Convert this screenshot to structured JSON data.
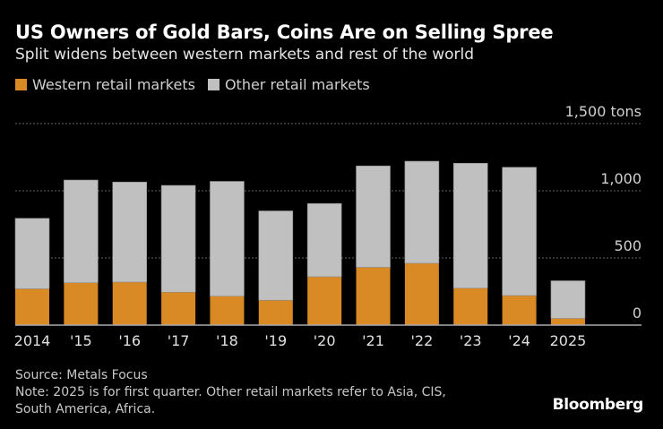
{
  "chart_data": {
    "type": "bar",
    "stacked": true,
    "title": "US Owners of Gold Bars, Coins Are on Selling Spree",
    "subtitle": "Split widens between western markets and rest of the world",
    "categories": [
      "2014",
      "'15",
      "'16",
      "'17",
      "'18",
      "'19",
      "'20",
      "'21",
      "'22",
      "'23",
      "'24",
      "2025"
    ],
    "series": [
      {
        "name": "Western retail markets",
        "color": "#da8a25",
        "values": [
          270,
          315,
          320,
          245,
          215,
          185,
          360,
          430,
          460,
          275,
          220,
          50
        ]
      },
      {
        "name": "Other retail markets",
        "color": "#c0c0c0",
        "values": [
          525,
          765,
          745,
          795,
          855,
          665,
          545,
          755,
          760,
          930,
          955,
          280
        ]
      }
    ],
    "ylim": [
      0,
      1500
    ],
    "yticks": [
      {
        "value": 0,
        "label": "0"
      },
      {
        "value": 500,
        "label": "500"
      },
      {
        "value": 1000,
        "label": "1,000"
      },
      {
        "value": 1500,
        "label": "1,500 tons"
      }
    ],
    "grid": true,
    "legend_position": "top-left"
  },
  "footer": {
    "source": "Source: Metals Focus",
    "note_line1": "Note: 2025 is for first quarter. Other retail markets refer to Asia, CIS,",
    "note_line2": "South America, Africa."
  },
  "logo": "Bloomberg",
  "colors": {
    "background": "#000000",
    "gridline": "#666666",
    "axis": "#aaaaaa"
  }
}
